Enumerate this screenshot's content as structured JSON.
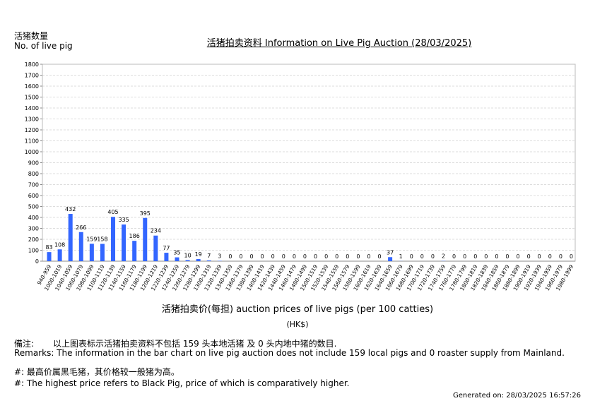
{
  "header": {
    "ylabel_zh": "活猪数量",
    "ylabel_en": "No. of live pig",
    "title": "活猪拍卖资料 Information on Live Pig Auction (28/03/2025)"
  },
  "chart_data": {
    "type": "bar",
    "title": "活猪拍卖资料 Information on Live Pig Auction (28/03/2025)",
    "xlabel": "活猪拍卖价(每担) auction prices of live pigs (per 100 catties)",
    "xunit": "(HK$)",
    "ylabel": "活猪数量 No. of live pig",
    "ylim": [
      0,
      1800
    ],
    "yticks": [
      0,
      100,
      200,
      300,
      400,
      500,
      600,
      700,
      800,
      900,
      1000,
      1100,
      1200,
      1300,
      1400,
      1500,
      1600,
      1700,
      1800
    ],
    "grid": true,
    "bar_color": "#3366ff",
    "categories": [
      "940-959",
      "1000-1019",
      "1040-1059",
      "1060-1079",
      "1080-1099",
      "1100-1119",
      "1120-1139",
      "1140-1159",
      "1160-1179",
      "1180-1199",
      "1200-1219",
      "1220-1239",
      "1240-1259",
      "1260-1279",
      "1280-1299",
      "1300-1319",
      "1320-1339",
      "1340-1359",
      "1360-1379",
      "1380-1399",
      "1400-1419",
      "1420-1439",
      "1440-1459",
      "1460-1479",
      "1480-1499",
      "1500-1519",
      "1520-1539",
      "1540-1559",
      "1560-1579",
      "1580-1599",
      "1600-1619",
      "1620-1639",
      "1640-1659",
      "1660-1679",
      "1680-1699",
      "1700-1719",
      "1720-1739",
      "1740-1759",
      "1760-1779",
      "1780-1799",
      "1800-1819",
      "1820-1839",
      "1840-1859",
      "1860-1879",
      "1880-1899",
      "1900-1919",
      "1920-1939",
      "1940-1959",
      "1960-1979",
      "1980-1999"
    ],
    "values": [
      83,
      108,
      432,
      266,
      159,
      158,
      405,
      335,
      186,
      395,
      234,
      77,
      35,
      10,
      19,
      7,
      3,
      0,
      0,
      0,
      0,
      0,
      0,
      0,
      0,
      0,
      0,
      0,
      0,
      0,
      0,
      0,
      37,
      1,
      0,
      0,
      0,
      2,
      0,
      0,
      0,
      0,
      0,
      0,
      0,
      0,
      0,
      0,
      0,
      0
    ]
  },
  "remarks": {
    "zh_label": "備注:",
    "zh": "以上图表标示活猪拍卖资料不包括 159 头本地活猪 及 0 头内地中猪的数目.",
    "en": "Remarks: The information in the bar chart on live pig auction does not include 159 local pigs and 0 roaster supply from Mainland.",
    "note_zh": "#: 最高价属黑毛猪，其价格较一般猪为高。",
    "note_en": "#: The highest price refers to Black Pig, price of which is comparatively higher."
  },
  "generated": "Generated on: 28/03/2025 16:57:26"
}
